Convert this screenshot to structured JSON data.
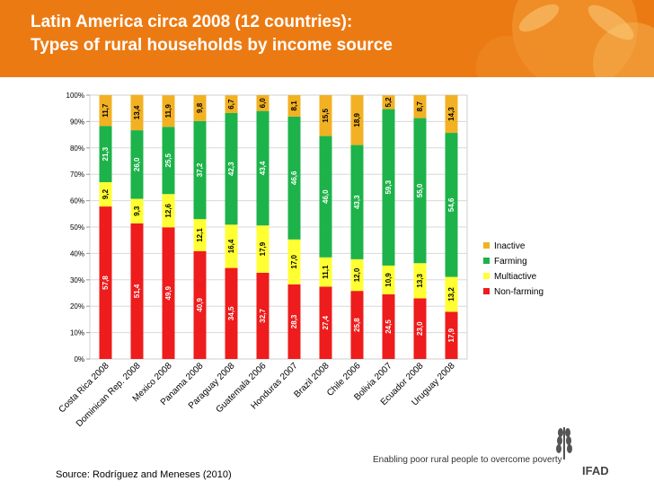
{
  "header": {
    "title_line1": "Latin America circa 2008 (12 countries):",
    "title_line2": "Types of rural households by income source"
  },
  "footer": {
    "source": "Source: Rodríguez and Meneses (2010)",
    "tagline": "Enabling poor rural people to overcome poverty",
    "logo_text": "IFAD"
  },
  "colors": {
    "header": "#ec7a12",
    "non_farming": "#ee1c1c",
    "multiactive": "#ffff33",
    "farming": "#1db34a",
    "inactive": "#f2b122"
  },
  "chart_data": {
    "type": "bar",
    "stacked": true,
    "title": "Latin America circa 2008 (12 countries): Types of rural households by income source",
    "xlabel": "",
    "ylabel": "",
    "ylim": [
      0,
      100
    ],
    "yticks": [
      "0%",
      "10%",
      "20%",
      "30%",
      "40%",
      "50%",
      "60%",
      "70%",
      "80%",
      "90%",
      "100%"
    ],
    "categories": [
      "Costa Rica 2008",
      "Dominican Rep. 2008",
      "Mexico 2008",
      "Panama 2008",
      "Paraguay 2008",
      "Guatemala 2006",
      "Honduras 2007",
      "Brazil 2008",
      "Chile 2006",
      "Bolivia 2007",
      "Ecuador 2008",
      "Uruguay 2008"
    ],
    "series": [
      {
        "name": "Non-farming",
        "color": "#ee1c1c",
        "label_color": "#ffffff",
        "values": [
          57.8,
          51.4,
          49.9,
          40.9,
          34.5,
          32.7,
          28.3,
          27.4,
          25.8,
          24.5,
          23.0,
          17.9
        ],
        "labels": [
          "57,8",
          "51,4",
          "49,9",
          "40,9",
          "34,5",
          "32,7",
          "28,3",
          "27,4",
          "25,8",
          "24,5",
          "23,0",
          "17,9"
        ]
      },
      {
        "name": "Multiactive",
        "color": "#ffff33",
        "label_color": "#000000",
        "values": [
          9.2,
          9.3,
          12.6,
          12.1,
          16.4,
          17.9,
          17.0,
          11.1,
          12.0,
          10.9,
          13.3,
          13.2
        ],
        "labels": [
          "9,2",
          "9,3",
          "12,6",
          "12,1",
          "16,4",
          "17,9",
          "17,0",
          "11,1",
          "12,0",
          "10,9",
          "13,3",
          "13,2"
        ]
      },
      {
        "name": "Farming",
        "color": "#1db34a",
        "label_color": "#ffffff",
        "values": [
          21.3,
          26.0,
          25.5,
          37.2,
          42.3,
          43.4,
          46.6,
          46.0,
          43.3,
          59.3,
          55.0,
          54.6
        ],
        "labels": [
          "21,3",
          "26,0",
          "25,5",
          "37,2",
          "42,3",
          "43,4",
          "46,6",
          "46,0",
          "43,3",
          "59,3",
          "55,0",
          "54,6"
        ]
      },
      {
        "name": "Inactive",
        "color": "#f2b122",
        "label_color": "#000000",
        "values": [
          11.7,
          13.4,
          11.9,
          9.8,
          6.7,
          6.0,
          8.1,
          15.5,
          18.9,
          5.2,
          8.7,
          14.3
        ],
        "labels": [
          "11,7",
          "13,4",
          "11,9",
          "9,8",
          "6,7",
          "6,0",
          "8,1",
          "15,5",
          "18,9",
          "5,2",
          "8,7",
          "14,3"
        ]
      }
    ],
    "legend": {
      "position": "right",
      "order": [
        "Inactive",
        "Farming",
        "Multiactive",
        "Non-farming"
      ]
    }
  }
}
